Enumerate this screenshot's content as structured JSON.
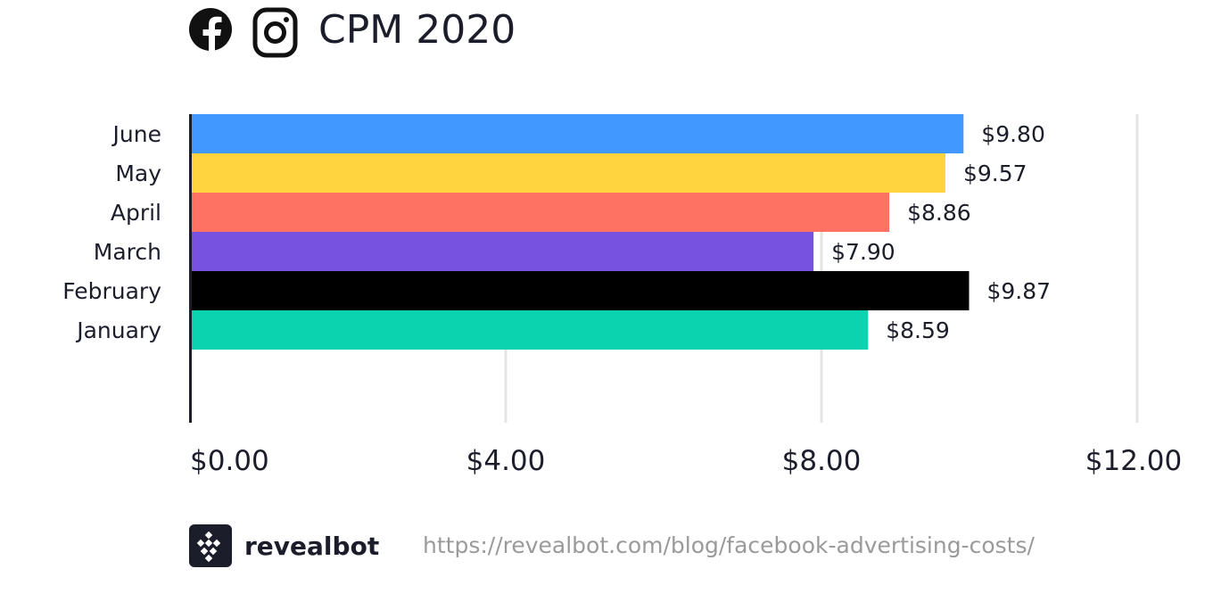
{
  "header": {
    "title": "CPM 2020",
    "icons": [
      "facebook-icon",
      "instagram-icon"
    ]
  },
  "chart_data": {
    "type": "bar",
    "orientation": "horizontal",
    "title": "CPM 2020",
    "categories": [
      "June",
      "May",
      "April",
      "March",
      "February",
      "January"
    ],
    "values": [
      9.8,
      9.57,
      8.86,
      7.9,
      9.87,
      8.59
    ],
    "value_labels": [
      "$9.80",
      "$9.57",
      "$8.86",
      "$7.90",
      "$9.87",
      "$8.59"
    ],
    "colors": [
      "#4199ff",
      "#ffd43f",
      "#fd7262",
      "#7752e0",
      "#000000",
      "#0bd3b0"
    ],
    "xlim": [
      0,
      12
    ],
    "xticks": [
      0,
      4,
      8,
      12
    ],
    "xtick_labels": [
      "$0.00",
      "$4.00",
      "$8.00",
      "$12.00"
    ],
    "xlabel": "",
    "ylabel": "",
    "grid": true,
    "legend": "none"
  },
  "footer": {
    "brand": "revealbot",
    "logo_icon": "revealbot-logo-icon",
    "url": "https://revealbot.com/blog/facebook-advertising-costs/"
  }
}
